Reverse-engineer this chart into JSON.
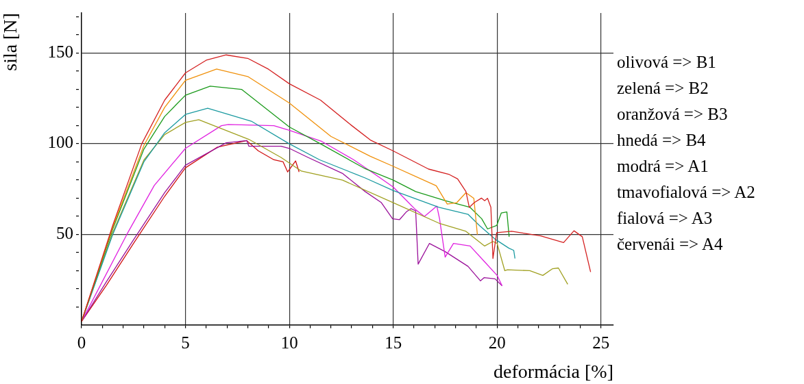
{
  "chart_data": {
    "type": "line",
    "xlabel": "deformácia [%]",
    "ylabel": "sila [N]",
    "xlim": [
      0,
      25.6
    ],
    "ylim": [
      0,
      172
    ],
    "xticks": [
      0,
      {
        "value": 1,
        "label": null
      },
      {
        "value": 2,
        "label": null
      },
      {
        "value": 3,
        "label": null
      },
      {
        "value": 4,
        "label": null
      },
      5,
      {
        "value": 6,
        "label": null
      },
      {
        "value": 7,
        "label": null
      },
      {
        "value": 8,
        "label": null
      },
      {
        "value": 9,
        "label": null
      },
      10,
      {
        "value": 11,
        "label": null
      },
      {
        "value": 12,
        "label": null
      },
      {
        "value": 13,
        "label": null
      },
      {
        "value": 14,
        "label": null
      },
      15,
      {
        "value": 16,
        "label": null
      },
      {
        "value": 17,
        "label": null
      },
      {
        "value": 18,
        "label": null
      },
      {
        "value": 19,
        "label": null
      },
      20,
      {
        "value": 21,
        "label": null
      },
      {
        "value": 22,
        "label": null
      },
      {
        "value": 23,
        "label": null
      },
      {
        "value": 24,
        "label": null
      },
      25
    ],
    "yticks": [
      {
        "value": 10,
        "label": null
      },
      {
        "value": 20,
        "label": null
      },
      {
        "value": 30,
        "label": null
      },
      {
        "value": 40,
        "label": null
      },
      50,
      {
        "value": 60,
        "label": null
      },
      {
        "value": 70,
        "label": null
      },
      {
        "value": 80,
        "label": null
      },
      {
        "value": 90,
        "label": null
      },
      100,
      {
        "value": 110,
        "label": null
      },
      {
        "value": 120,
        "label": null
      },
      {
        "value": 130,
        "label": null
      },
      {
        "value": 140,
        "label": null
      },
      150,
      {
        "value": 160,
        "label": null
      },
      {
        "value": 170,
        "label": null
      }
    ],
    "grid": true,
    "line_style": "solid",
    "marker": "none",
    "legend": false,
    "annotations": [
      "olivová => B1",
      "zelená => B2",
      "oranžová => B3",
      "hnedá => B4",
      "modrá => A1",
      "tmavofialová => A2",
      "fialová => A3",
      "červenái => A4"
    ],
    "series": [
      {
        "color": "#d42020",
        "x": [
          0,
          1.5,
          2.9,
          4,
          5,
          6,
          6.96,
          8,
          9,
          10,
          11.5,
          13,
          13.9,
          15,
          16.7,
          17.7,
          18.1,
          18.5,
          18.66,
          18.9,
          19.25,
          19.4,
          19.54,
          19.7,
          19.8,
          19.98,
          20.7,
          22.1,
          23.2,
          23.7,
          24.1,
          24.5
        ],
        "values": [
          2,
          55,
          100,
          124,
          139,
          146,
          148.9,
          147,
          141,
          133,
          124,
          110,
          102,
          96,
          86,
          83,
          80.6,
          73.6,
          64.9,
          67.5,
          70,
          68.6,
          69.9,
          65,
          36.7,
          51,
          51.7,
          49.2,
          45.5,
          52,
          48.7,
          29.3
        ]
      },
      {
        "color": "#f0900a",
        "x": [
          0,
          1.5,
          3,
          4,
          5,
          6.5,
          8,
          10,
          12,
          13.9,
          15,
          17.07,
          17.6,
          18.06,
          18.5,
          18.88,
          19.05
        ],
        "values": [
          2,
          54,
          99,
          120,
          134.9,
          141.1,
          137,
          122.4,
          104,
          93,
          87.5,
          76.8,
          66.7,
          67.5,
          73,
          69.9,
          49.9
        ]
      },
      {
        "color": "#1a9a1a",
        "x": [
          0,
          1.5,
          3,
          4,
          5,
          6.19,
          7.7,
          10,
          11.5,
          13.65,
          15,
          16.08,
          17.5,
          18.7,
          19.26,
          19.54,
          19.98,
          20.2,
          20.47,
          20.58
        ],
        "values": [
          2,
          53,
          97,
          115,
          126.7,
          131.7,
          129.9,
          109.2,
          99.9,
          86.2,
          79.9,
          73.6,
          68.6,
          64.9,
          58.6,
          53,
          54.9,
          61.8,
          62.4,
          48.7
        ]
      },
      {
        "color": "#1a9aa0",
        "x": [
          0,
          1.5,
          3,
          4,
          5,
          6.07,
          8.17,
          10,
          11.46,
          13.65,
          15,
          17.2,
          18.6,
          19.15,
          19.9,
          20.57,
          20.8,
          20.86
        ],
        "values": [
          2,
          50,
          90,
          106,
          116.1,
          119.5,
          112.4,
          99.9,
          91.1,
          81.1,
          74.2,
          64.9,
          61.1,
          54.9,
          47.4,
          42.4,
          41.2,
          36.7
        ]
      },
      {
        "color": "#a0a020",
        "x": [
          0,
          1.5,
          3,
          4,
          5,
          5.64,
          8.05,
          9.6,
          10.58,
          12.56,
          15,
          17.2,
          18.5,
          19.4,
          19.8,
          20,
          20.37,
          20.5,
          21.57,
          22.2,
          22.67,
          22.95,
          23.4
        ],
        "values": [
          2,
          51,
          91,
          105,
          111.7,
          113.2,
          102.4,
          92.4,
          84.9,
          79.9,
          67.5,
          56.2,
          51.7,
          43.6,
          46.1,
          45,
          30,
          30.5,
          30,
          27.4,
          31.1,
          31.5,
          22.5
        ]
      },
      {
        "color": "#e020e0",
        "x": [
          0,
          1,
          2.18,
          3.5,
          5,
          6.73,
          7.06,
          9.26,
          10,
          11.57,
          13.1,
          13.9,
          15,
          15.86,
          16.08,
          16.5,
          17.1,
          17.23,
          17.5,
          17.9,
          18.7,
          19.4,
          20,
          20.24
        ],
        "values": [
          2,
          24,
          50,
          77,
          97.4,
          109.9,
          110.6,
          109.9,
          107.4,
          101.2,
          91.1,
          84.9,
          76.1,
          66.1,
          63.6,
          59.9,
          65.6,
          58.6,
          37.5,
          45,
          43.6,
          34.9,
          27.4,
          21.7
        ]
      },
      {
        "color": "#9a109a",
        "x": [
          0,
          1.2,
          2.5,
          4,
          5,
          6.96,
          7.95,
          8.05,
          9.6,
          10,
          10.9,
          12.56,
          13.65,
          14.43,
          14.97,
          15.3,
          15.63,
          15.86,
          16.08,
          16.2,
          16.74,
          17.5,
          18.6,
          19.2,
          19.38,
          19.9,
          20.24
        ],
        "values": [
          2,
          24,
          47,
          73,
          88.1,
          100.5,
          101.7,
          98.6,
          98.6,
          97.4,
          92.4,
          83.6,
          73.6,
          67.5,
          58.6,
          58.1,
          62.4,
          64.2,
          63,
          33.6,
          45,
          40.5,
          32.4,
          24.4,
          26.2,
          25.5,
          21.7
        ]
      },
      {
        "color": "#d01010",
        "x": [
          0,
          1.2,
          2.5,
          4,
          5,
          6.52,
          7.95,
          8.5,
          9.26,
          9.7,
          9.92,
          10.3,
          10.47
        ],
        "values": [
          2,
          22,
          45,
          71,
          86.7,
          98,
          101.7,
          96.1,
          91.1,
          90,
          84.4,
          90.5,
          84.4
        ]
      }
    ]
  }
}
